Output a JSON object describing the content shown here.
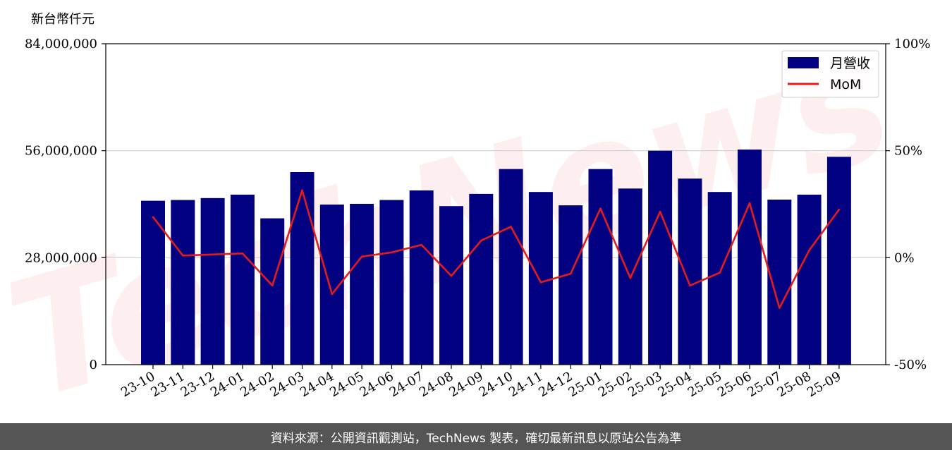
{
  "footer": {
    "source_text": "資料來源：公開資訊觀測站，TechNews 製表，確切最新訊息以原站公告為準"
  },
  "chart_data": {
    "type": "bar",
    "unit_label": "新台幣仟元",
    "categories": [
      "23-10",
      "23-11",
      "23-12",
      "24-01",
      "24-02",
      "24-03",
      "24-04",
      "24-05",
      "24-06",
      "24-07",
      "24-08",
      "24-09",
      "24-10",
      "24-11",
      "24-12",
      "25-01",
      "25-02",
      "25-03",
      "25-04",
      "25-05",
      "25-06",
      "25-07",
      "25-08",
      "25-09"
    ],
    "series": [
      {
        "name": "月營收",
        "axis": "left",
        "kind": "bar",
        "color": "#000080",
        "values": [
          42900000,
          43100000,
          43600000,
          44500000,
          38300000,
          50400000,
          41900000,
          42100000,
          43100000,
          45600000,
          41500000,
          44700000,
          51200000,
          45200000,
          41700000,
          51200000,
          46100000,
          56000000,
          48700000,
          45200000,
          56300000,
          43200000,
          44500000,
          54400000
        ]
      },
      {
        "name": "MoM",
        "axis": "right",
        "kind": "line",
        "color": "#e41a1c",
        "values": [
          19.0,
          1.0,
          1.5,
          2.0,
          -13.0,
          31.5,
          -17.0,
          0.5,
          2.5,
          6.0,
          -8.5,
          8.0,
          14.5,
          -11.5,
          -7.5,
          23.0,
          -9.5,
          21.5,
          -13.0,
          -7.0,
          25.5,
          -23.5,
          3.5,
          22.5
        ]
      }
    ],
    "y_left": {
      "min": 0,
      "max": 84000000,
      "ticks": [
        0,
        28000000,
        56000000,
        84000000
      ],
      "tick_labels": [
        "0",
        "28,000,000",
        "56,000,000",
        "84,000,000"
      ]
    },
    "y_right": {
      "min": -50,
      "max": 100,
      "ticks": [
        -50,
        0,
        50,
        100
      ],
      "tick_labels": [
        "-50%",
        "0%",
        "50%",
        "100%"
      ]
    },
    "grid": "horizontal",
    "legend_position": "top-right"
  }
}
